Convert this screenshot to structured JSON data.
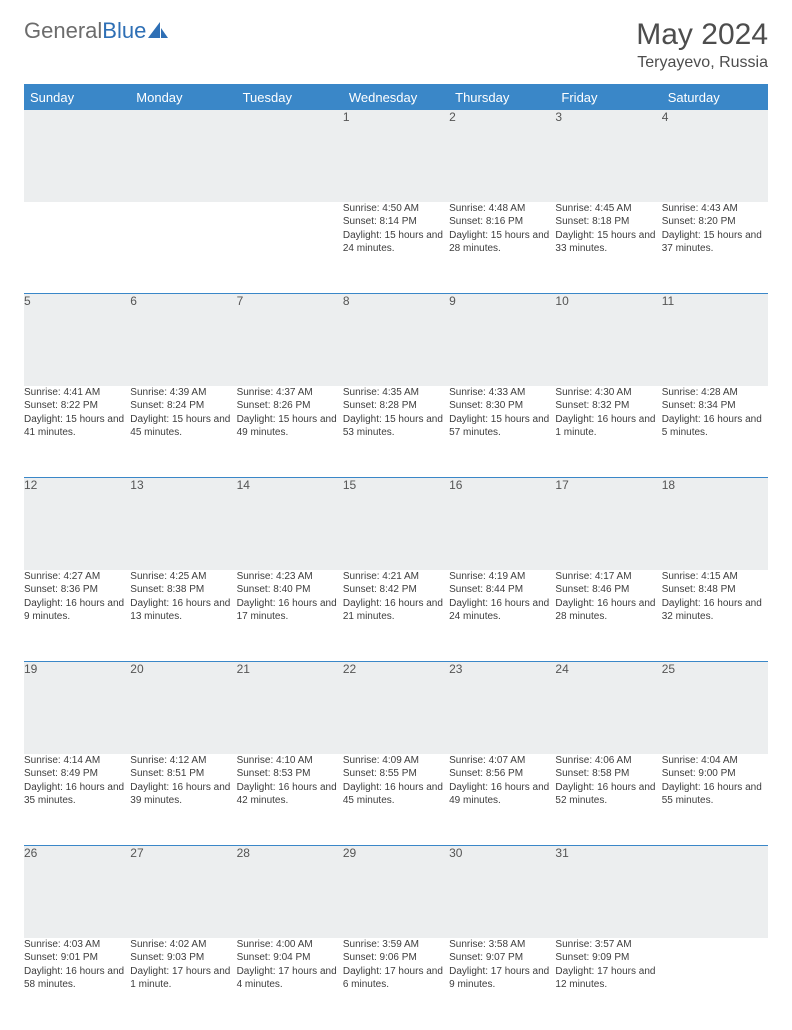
{
  "brand": {
    "word1": "General",
    "word2": "Blue",
    "logo_color": "#2e6fb5"
  },
  "title": "May 2024",
  "location": "Teryayevo, Russia",
  "colors": {
    "header_bg": "#3a87c8",
    "header_text": "#ffffff",
    "daynum_bg": "#eceeef",
    "rule": "#3a87c8",
    "text": "#3d3d3d"
  },
  "fonts": {
    "title_size": 30,
    "location_size": 16,
    "dayhead_size": 13,
    "daynum_size": 12,
    "body_size": 10
  },
  "day_headers": [
    "Sunday",
    "Monday",
    "Tuesday",
    "Wednesday",
    "Thursday",
    "Friday",
    "Saturday"
  ],
  "weeks": [
    [
      null,
      null,
      null,
      {
        "n": "1",
        "sunrise": "4:50 AM",
        "sunset": "8:14 PM",
        "daylight": "15 hours and 24 minutes."
      },
      {
        "n": "2",
        "sunrise": "4:48 AM",
        "sunset": "8:16 PM",
        "daylight": "15 hours and 28 minutes."
      },
      {
        "n": "3",
        "sunrise": "4:45 AM",
        "sunset": "8:18 PM",
        "daylight": "15 hours and 33 minutes."
      },
      {
        "n": "4",
        "sunrise": "4:43 AM",
        "sunset": "8:20 PM",
        "daylight": "15 hours and 37 minutes."
      }
    ],
    [
      {
        "n": "5",
        "sunrise": "4:41 AM",
        "sunset": "8:22 PM",
        "daylight": "15 hours and 41 minutes."
      },
      {
        "n": "6",
        "sunrise": "4:39 AM",
        "sunset": "8:24 PM",
        "daylight": "15 hours and 45 minutes."
      },
      {
        "n": "7",
        "sunrise": "4:37 AM",
        "sunset": "8:26 PM",
        "daylight": "15 hours and 49 minutes."
      },
      {
        "n": "8",
        "sunrise": "4:35 AM",
        "sunset": "8:28 PM",
        "daylight": "15 hours and 53 minutes."
      },
      {
        "n": "9",
        "sunrise": "4:33 AM",
        "sunset": "8:30 PM",
        "daylight": "15 hours and 57 minutes."
      },
      {
        "n": "10",
        "sunrise": "4:30 AM",
        "sunset": "8:32 PM",
        "daylight": "16 hours and 1 minute."
      },
      {
        "n": "11",
        "sunrise": "4:28 AM",
        "sunset": "8:34 PM",
        "daylight": "16 hours and 5 minutes."
      }
    ],
    [
      {
        "n": "12",
        "sunrise": "4:27 AM",
        "sunset": "8:36 PM",
        "daylight": "16 hours and 9 minutes."
      },
      {
        "n": "13",
        "sunrise": "4:25 AM",
        "sunset": "8:38 PM",
        "daylight": "16 hours and 13 minutes."
      },
      {
        "n": "14",
        "sunrise": "4:23 AM",
        "sunset": "8:40 PM",
        "daylight": "16 hours and 17 minutes."
      },
      {
        "n": "15",
        "sunrise": "4:21 AM",
        "sunset": "8:42 PM",
        "daylight": "16 hours and 21 minutes."
      },
      {
        "n": "16",
        "sunrise": "4:19 AM",
        "sunset": "8:44 PM",
        "daylight": "16 hours and 24 minutes."
      },
      {
        "n": "17",
        "sunrise": "4:17 AM",
        "sunset": "8:46 PM",
        "daylight": "16 hours and 28 minutes."
      },
      {
        "n": "18",
        "sunrise": "4:15 AM",
        "sunset": "8:48 PM",
        "daylight": "16 hours and 32 minutes."
      }
    ],
    [
      {
        "n": "19",
        "sunrise": "4:14 AM",
        "sunset": "8:49 PM",
        "daylight": "16 hours and 35 minutes."
      },
      {
        "n": "20",
        "sunrise": "4:12 AM",
        "sunset": "8:51 PM",
        "daylight": "16 hours and 39 minutes."
      },
      {
        "n": "21",
        "sunrise": "4:10 AM",
        "sunset": "8:53 PM",
        "daylight": "16 hours and 42 minutes."
      },
      {
        "n": "22",
        "sunrise": "4:09 AM",
        "sunset": "8:55 PM",
        "daylight": "16 hours and 45 minutes."
      },
      {
        "n": "23",
        "sunrise": "4:07 AM",
        "sunset": "8:56 PM",
        "daylight": "16 hours and 49 minutes."
      },
      {
        "n": "24",
        "sunrise": "4:06 AM",
        "sunset": "8:58 PM",
        "daylight": "16 hours and 52 minutes."
      },
      {
        "n": "25",
        "sunrise": "4:04 AM",
        "sunset": "9:00 PM",
        "daylight": "16 hours and 55 minutes."
      }
    ],
    [
      {
        "n": "26",
        "sunrise": "4:03 AM",
        "sunset": "9:01 PM",
        "daylight": "16 hours and 58 minutes."
      },
      {
        "n": "27",
        "sunrise": "4:02 AM",
        "sunset": "9:03 PM",
        "daylight": "17 hours and 1 minute."
      },
      {
        "n": "28",
        "sunrise": "4:00 AM",
        "sunset": "9:04 PM",
        "daylight": "17 hours and 4 minutes."
      },
      {
        "n": "29",
        "sunrise": "3:59 AM",
        "sunset": "9:06 PM",
        "daylight": "17 hours and 6 minutes."
      },
      {
        "n": "30",
        "sunrise": "3:58 AM",
        "sunset": "9:07 PM",
        "daylight": "17 hours and 9 minutes."
      },
      {
        "n": "31",
        "sunrise": "3:57 AM",
        "sunset": "9:09 PM",
        "daylight": "17 hours and 12 minutes."
      },
      null
    ]
  ],
  "labels": {
    "sunrise": "Sunrise:",
    "sunset": "Sunset:",
    "daylight": "Daylight:"
  }
}
